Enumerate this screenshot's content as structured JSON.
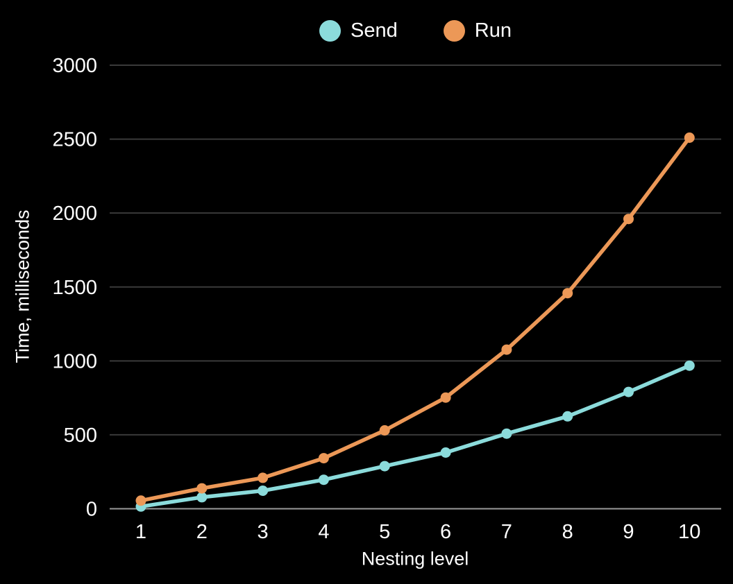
{
  "chart_data": {
    "type": "line",
    "title": "",
    "xlabel": "Nesting level",
    "ylabel": "Time, milliseconds",
    "x": [
      1,
      2,
      3,
      4,
      5,
      6,
      7,
      8,
      9,
      10
    ],
    "x_ticks": [
      "1",
      "2",
      "3",
      "4",
      "5",
      "6",
      "7",
      "8",
      "9",
      "10"
    ],
    "y_ticks": [
      0,
      500,
      1000,
      1500,
      2000,
      2500,
      3000
    ],
    "ylim": [
      0,
      3000
    ],
    "grid": "horizontal",
    "legend_position": "top-center",
    "colors": {
      "background": "#000000",
      "text": "#ffffff",
      "gridline": "#3a3a3a",
      "axis_line": "#9a9a9a",
      "send": "#8BDBDB",
      "run": "#EC9857"
    },
    "series": [
      {
        "name": "Send",
        "color": "#8BDBDB",
        "values": [
          15,
          78,
          122,
          196,
          288,
          380,
          508,
          625,
          790,
          968
        ]
      },
      {
        "name": "Run",
        "color": "#EC9857",
        "values": [
          55,
          138,
          209,
          342,
          530,
          752,
          1076,
          1458,
          1960,
          2510
        ]
      }
    ]
  }
}
